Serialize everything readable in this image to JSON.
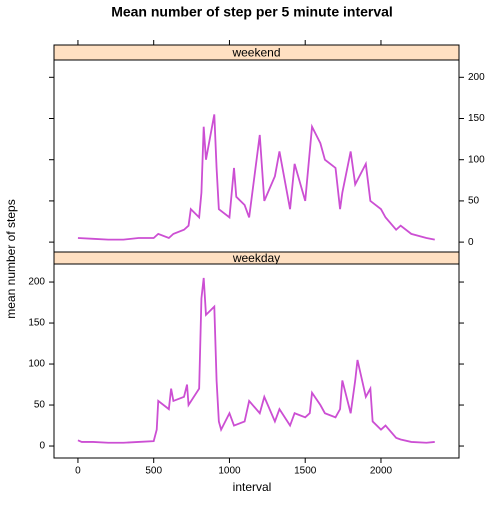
{
  "chart_data": [
    {
      "type": "line",
      "title": "Mean number of step per 5 minute interval",
      "subtitle": "weekend",
      "x": [
        0,
        100,
        200,
        300,
        400,
        500,
        530,
        600,
        630,
        700,
        730,
        745,
        800,
        815,
        830,
        845,
        900,
        915,
        930,
        1000,
        1030,
        1045,
        1100,
        1130,
        1200,
        1230,
        1300,
        1330,
        1400,
        1430,
        1500,
        1545,
        1600,
        1630,
        1700,
        1730,
        1745,
        1800,
        1830,
        1900,
        1930,
        2000,
        2030,
        2100,
        2130,
        2200,
        2300,
        2355
      ],
      "series": [
        {
          "name": "weekend",
          "color": "#cc4fd3",
          "values": [
            5,
            4,
            3,
            3,
            5,
            5,
            10,
            5,
            10,
            15,
            20,
            40,
            30,
            60,
            140,
            100,
            155,
            90,
            40,
            30,
            90,
            55,
            45,
            30,
            130,
            50,
            80,
            110,
            40,
            95,
            50,
            140,
            120,
            100,
            90,
            40,
            60,
            110,
            70,
            95,
            50,
            40,
            30,
            15,
            20,
            10,
            5,
            3
          ]
        }
      ],
      "xlim": [
        -158,
        2515
      ],
      "ylim": [
        -12,
        221
      ],
      "yticks": [
        0,
        50,
        100,
        150,
        200
      ],
      "yaxis_side": "right"
    },
    {
      "type": "line",
      "subtitle": "weekday",
      "xlabel": "interval",
      "ylabel": "mean number of steps",
      "x": [
        0,
        25,
        100,
        200,
        300,
        400,
        500,
        520,
        530,
        600,
        615,
        630,
        700,
        720,
        730,
        800,
        815,
        830,
        845,
        900,
        915,
        930,
        945,
        1000,
        1030,
        1100,
        1130,
        1200,
        1230,
        1300,
        1330,
        1400,
        1430,
        1500,
        1530,
        1545,
        1600,
        1630,
        1700,
        1730,
        1745,
        1800,
        1830,
        1845,
        1900,
        1930,
        1945,
        2000,
        2030,
        2100,
        2130,
        2200,
        2300,
        2355
      ],
      "series": [
        {
          "name": "weekday",
          "color": "#cc4fd3",
          "values": [
            7,
            5,
            5,
            4,
            4,
            5,
            6,
            20,
            55,
            45,
            70,
            55,
            60,
            75,
            50,
            70,
            180,
            205,
            160,
            170,
            80,
            30,
            20,
            40,
            25,
            30,
            55,
            40,
            60,
            30,
            45,
            25,
            40,
            35,
            40,
            65,
            50,
            40,
            35,
            45,
            80,
            40,
            80,
            105,
            60,
            70,
            30,
            20,
            25,
            10,
            8,
            5,
            4,
            5
          ]
        }
      ],
      "xlim": [
        -158,
        2515
      ],
      "xticks": [
        0,
        500,
        1000,
        1500,
        2000
      ],
      "ylim": [
        -14.6,
        222
      ],
      "yticks": [
        0,
        50,
        100,
        150,
        200
      ],
      "yaxis_side": "left"
    }
  ]
}
